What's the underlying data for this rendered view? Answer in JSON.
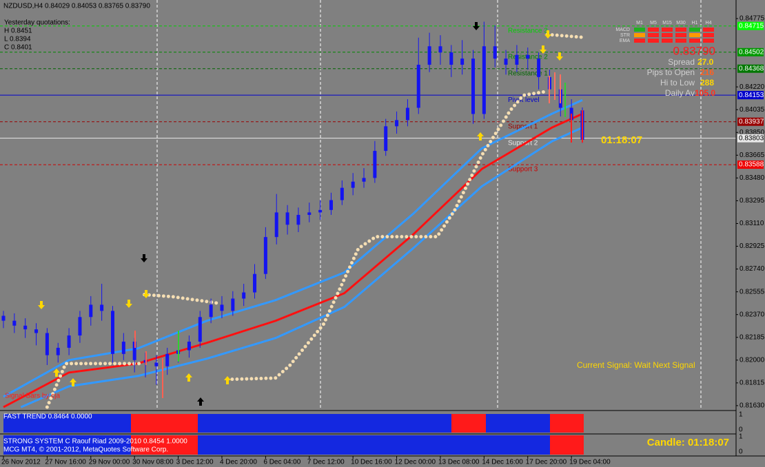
{
  "chart_data": {
    "type": "candlestick",
    "title": "NZDUSD,H4  0.84029 0.84053 0.83765 0.83790",
    "xlim": [
      -0.315,
      67.07
    ],
    "ylim": [
      0.81596,
      0.84926
    ],
    "xticks": [
      {
        "value": 0,
        "label": "26 Nov 2012"
      },
      {
        "value": 4,
        "label": "27 Nov 16:00"
      },
      {
        "value": 8,
        "label": "29 Nov 00:00"
      },
      {
        "value": 12,
        "label": "30 Nov 08:00"
      },
      {
        "value": 16,
        "label": "3 Dec 12:00"
      },
      {
        "value": 20,
        "label": "4 Dec 20:00"
      },
      {
        "value": 24,
        "label": "6 Dec 04:00"
      },
      {
        "value": 28,
        "label": "7 Dec 12:00"
      },
      {
        "value": 32,
        "label": "10 Dec 16:00"
      },
      {
        "value": 36,
        "label": "12 Dec 00:00"
      },
      {
        "value": 40,
        "label": "13 Dec 08:00"
      },
      {
        "value": 44,
        "label": "14 Dec 16:00"
      },
      {
        "value": 48,
        "label": "17 Dec 20:00"
      },
      {
        "value": 52,
        "label": "19 Dec 04:00"
      }
    ],
    "yticks": [
      0.84775,
      {
        "value": 0.8422,
        "label": "0.84220"
      },
      0.84035,
      {
        "value": 0.8385,
        "label": "0.83850"
      },
      0.83665,
      {
        "value": 0.8348,
        "label": "0.83480"
      },
      0.83295,
      {
        "value": 0.8311,
        "label": "0.83110"
      },
      0.82925,
      {
        "value": 0.8274,
        "label": "0.82740"
      },
      0.82555,
      {
        "value": 0.8237,
        "label": "0.82370"
      },
      0.82185,
      {
        "value": 0.82,
        "label": "0.82000"
      },
      0.81815,
      {
        "value": 0.8163,
        "label": "0.81630"
      }
    ],
    "candle_color": "#1414f0",
    "ohlc": [
      [
        0.8236,
        0.824,
        0.8226,
        0.8232
      ],
      [
        0.8232,
        0.8238,
        0.8222,
        0.8228
      ],
      [
        0.8228,
        0.8234,
        0.8218,
        0.8225
      ],
      [
        0.8225,
        0.823,
        0.8212,
        0.8222
      ],
      [
        0.8222,
        0.8226,
        0.8196,
        0.8204
      ],
      [
        0.8204,
        0.8214,
        0.8198,
        0.821
      ],
      [
        0.821,
        0.8226,
        0.8204,
        0.822
      ],
      [
        0.822,
        0.824,
        0.8214,
        0.8235
      ],
      [
        0.8235,
        0.8252,
        0.8228,
        0.8245
      ],
      [
        0.8245,
        0.8262,
        0.8232,
        0.824
      ],
      [
        0.824,
        0.8244,
        0.8198,
        0.8205
      ],
      [
        0.8205,
        0.8222,
        0.82,
        0.8215
      ],
      [
        0.8215,
        0.8218,
        0.819,
        0.82
      ],
      [
        0.82,
        0.8206,
        0.8186,
        0.8198
      ],
      [
        0.8198,
        0.8204,
        0.818,
        0.8195
      ],
      [
        0.8195,
        0.821,
        0.8188,
        0.8205
      ],
      [
        0.8205,
        0.8214,
        0.8198,
        0.8208
      ],
      [
        0.8208,
        0.822,
        0.8202,
        0.8215
      ],
      [
        0.8215,
        0.824,
        0.821,
        0.8235
      ],
      [
        0.8235,
        0.825,
        0.823,
        0.8245
      ],
      [
        0.8245,
        0.8252,
        0.8234,
        0.824
      ],
      [
        0.824,
        0.8256,
        0.8236,
        0.825
      ],
      [
        0.825,
        0.8262,
        0.8244,
        0.8255
      ],
      [
        0.8255,
        0.8278,
        0.825,
        0.827
      ],
      [
        0.827,
        0.8308,
        0.8266,
        0.83
      ],
      [
        0.83,
        0.8335,
        0.8294,
        0.832
      ],
      [
        0.832,
        0.8326,
        0.8302,
        0.831
      ],
      [
        0.831,
        0.8324,
        0.8304,
        0.8318
      ],
      [
        0.8318,
        0.8328,
        0.8312,
        0.832
      ],
      [
        0.832,
        0.833,
        0.8314,
        0.8322
      ],
      [
        0.8322,
        0.8336,
        0.8318,
        0.833
      ],
      [
        0.833,
        0.8346,
        0.8326,
        0.834
      ],
      [
        0.834,
        0.8352,
        0.8334,
        0.8345
      ],
      [
        0.8345,
        0.8356,
        0.834,
        0.8348
      ],
      [
        0.8348,
        0.8378,
        0.8344,
        0.837
      ],
      [
        0.837,
        0.8396,
        0.8366,
        0.839
      ],
      [
        0.839,
        0.8402,
        0.8384,
        0.8395
      ],
      [
        0.8395,
        0.8412,
        0.839,
        0.8405
      ],
      [
        0.8405,
        0.8462,
        0.84,
        0.844
      ],
      [
        0.844,
        0.8466,
        0.8434,
        0.8455
      ],
      [
        0.8455,
        0.8464,
        0.844,
        0.845
      ],
      [
        0.845,
        0.8456,
        0.843,
        0.844
      ],
      [
        0.844,
        0.846,
        0.8432,
        0.8445
      ],
      [
        0.8445,
        0.8452,
        0.8392,
        0.84
      ],
      [
        0.84,
        0.8475,
        0.8396,
        0.8455
      ],
      [
        0.8455,
        0.8472,
        0.8438,
        0.8445
      ],
      [
        0.8445,
        0.8452,
        0.8432,
        0.844
      ],
      [
        0.844,
        0.8456,
        0.8434,
        0.8448
      ],
      [
        0.8448,
        0.8454,
        0.8436,
        0.8445
      ],
      [
        0.8445,
        0.845,
        0.842,
        0.843
      ],
      [
        0.843,
        0.8436,
        0.841,
        0.842
      ],
      [
        0.842,
        0.8426,
        0.8398,
        0.8405
      ],
      [
        0.8405,
        0.8412,
        0.8388,
        0.8395
      ],
      [
        0.84029,
        0.84053,
        0.83765,
        0.8379
      ]
    ],
    "lines": [
      {
        "color": "#3399ff",
        "width": 3,
        "x": [
          0,
          6,
          12.3,
          18.6,
          24.9,
          31.2,
          37.5,
          43.8,
          50.2,
          53
        ],
        "values": [
          0.81703,
          0.82,
          0.82095,
          0.82319,
          0.82487,
          0.82712,
          0.83188,
          0.83721,
          0.84001,
          0.84113
        ]
      },
      {
        "color": "#3399ff",
        "width": 3,
        "x": [
          1.6,
          6,
          12.3,
          18.6,
          24.9,
          31.2,
          37.5,
          43.8,
          50.2,
          53
        ],
        "values": [
          0.81618,
          0.81787,
          0.81871,
          0.82011,
          0.82179,
          0.82431,
          0.82908,
          0.83412,
          0.83777,
          0.83889
        ]
      },
      {
        "color": "#ff1010",
        "width": 3,
        "x": [
          0,
          6,
          12.3,
          18.6,
          24.9,
          31.2,
          37.5,
          43.8,
          50.2,
          53
        ],
        "values": [
          0.81618,
          0.81899,
          0.81972,
          0.8214,
          0.82319,
          0.82543,
          0.8302,
          0.83553,
          0.83889,
          0.84001
        ]
      },
      {
        "color": "#f5deb3",
        "width": 5,
        "dotted": true,
        "x": [
          4,
          5.7,
          12.6,
          null,
          12.9,
          15.5,
          18.6,
          19.9,
          null,
          20.5,
          24.9,
          26.2,
          29.3,
          32.5,
          34.1,
          39.7,
          41.3,
          43.8,
          46.4,
          47.6,
          49.5,
          null,
          49.8,
          53
        ],
        "values": [
          0.81618,
          0.81972,
          0.81972,
          null,
          0.82532,
          0.82515,
          0.82476,
          0.82459,
          null,
          0.81843,
          0.81854,
          0.81955,
          0.82291,
          0.82908,
          0.83003,
          0.83003,
          0.83216,
          0.83665,
          0.84029,
          0.84152,
          0.8418,
          null,
          0.84646,
          0.84623
        ]
      }
    ],
    "levels": [
      {
        "label": "Resistance 3",
        "value": 0.84715,
        "color": "#00d000",
        "box": "#00ff00"
      },
      {
        "label": "Resistance 2",
        "value": 0.84502,
        "color": "#008800",
        "box": "#009900"
      },
      {
        "label": "Resistance 1",
        "value": 0.84368,
        "color": "#006600",
        "box": "#007700"
      },
      {
        "label": "Pivot level",
        "value": 0.84153,
        "color": "#0000cc",
        "box": "#0000cc"
      },
      {
        "label": "Support 1",
        "value": 0.83937,
        "color": "#990000",
        "box": "#990000"
      },
      {
        "label": "Support 2",
        "value": 0.83803,
        "color": "#e8e8e8",
        "box": "#e8e8e8"
      },
      {
        "label": "Support 3",
        "value": 0.83588,
        "color": "#cc0000",
        "box": "#ee0000"
      }
    ]
  },
  "quotes": {
    "heading": "Yesterday quotations:",
    "high": "H 0.8451",
    "low": "L 0.8394",
    "close": "C 0.8401"
  },
  "dashboard": {
    "timeframes": [
      "M1",
      "M5",
      "M15",
      "M30",
      "H1",
      "H4"
    ],
    "rows": [
      "MACD",
      "STR",
      "EMA"
    ],
    "price": "0.83790",
    "spread_label": "Spread",
    "spread": "27.0",
    "pips_label": "Pips to Open",
    "pips": "216",
    "range_label": "Hi to Low",
    "range": "288",
    "daily_label": "Daily Av",
    "daily": "105.0"
  },
  "timer": "01:18:07",
  "current_signal": "Current Signal: Wait Next Signal",
  "signal_bars": "Signal Bars by cja",
  "fast_trend": {
    "title": "FAST TREND 0.8464 0.0000",
    "top": "1",
    "bottom": "0"
  },
  "strong_system": {
    "title": "STRONG SYSTEM C Raouf Riad 2009-2010  0.8454 1.0000",
    "top": "1",
    "bottom": "0"
  },
  "copyright": "MCG MT4, © 2001-2012, MetaQuotes Software Corp.",
  "candle_timer": "Candle:  01:18:07"
}
